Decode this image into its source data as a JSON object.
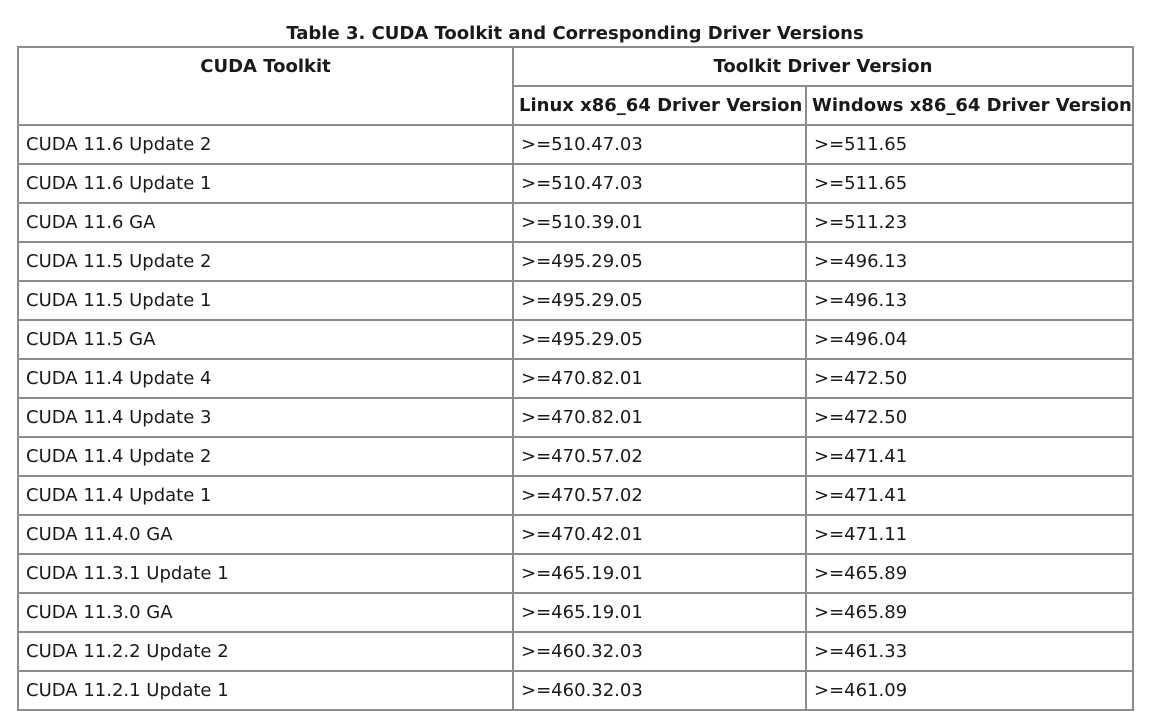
{
  "caption": "Table 3. CUDA Toolkit and Corresponding Driver Versions",
  "headers": {
    "toolkit": "CUDA Toolkit",
    "driver_group": "Toolkit Driver Version",
    "linux": "Linux x86_64 Driver Version",
    "windows": "Windows x86_64 Driver Version"
  },
  "rows": [
    [
      "CUDA 11.6 Update 2",
      ">=510.47.03",
      ">=511.65"
    ],
    [
      "CUDA 11.6 Update 1",
      ">=510.47.03",
      ">=511.65"
    ],
    [
      "CUDA 11.6 GA",
      ">=510.39.01",
      ">=511.23"
    ],
    [
      "CUDA 11.5 Update 2",
      ">=495.29.05",
      ">=496.13"
    ],
    [
      "CUDA 11.5 Update 1",
      ">=495.29.05",
      ">=496.13"
    ],
    [
      "CUDA 11.5 GA",
      ">=495.29.05",
      ">=496.04"
    ],
    [
      "CUDA 11.4 Update 4",
      ">=470.82.01",
      ">=472.50"
    ],
    [
      "CUDA 11.4 Update 3",
      ">=470.82.01",
      ">=472.50"
    ],
    [
      "CUDA 11.4 Update 2",
      ">=470.57.02",
      ">=471.41"
    ],
    [
      "CUDA 11.4 Update 1",
      ">=470.57.02",
      ">=471.41"
    ],
    [
      "CUDA 11.4.0 GA",
      ">=470.42.01",
      ">=471.11"
    ],
    [
      "CUDA 11.3.1 Update 1",
      ">=465.19.01",
      ">=465.89"
    ],
    [
      "CUDA 11.3.0 GA",
      ">=465.19.01",
      ">=465.89"
    ],
    [
      "CUDA 11.2.2 Update 2",
      ">=460.32.03",
      ">=461.33"
    ],
    [
      "CUDA 11.2.1 Update 1",
      ">=460.32.03",
      ">=461.09"
    ]
  ]
}
